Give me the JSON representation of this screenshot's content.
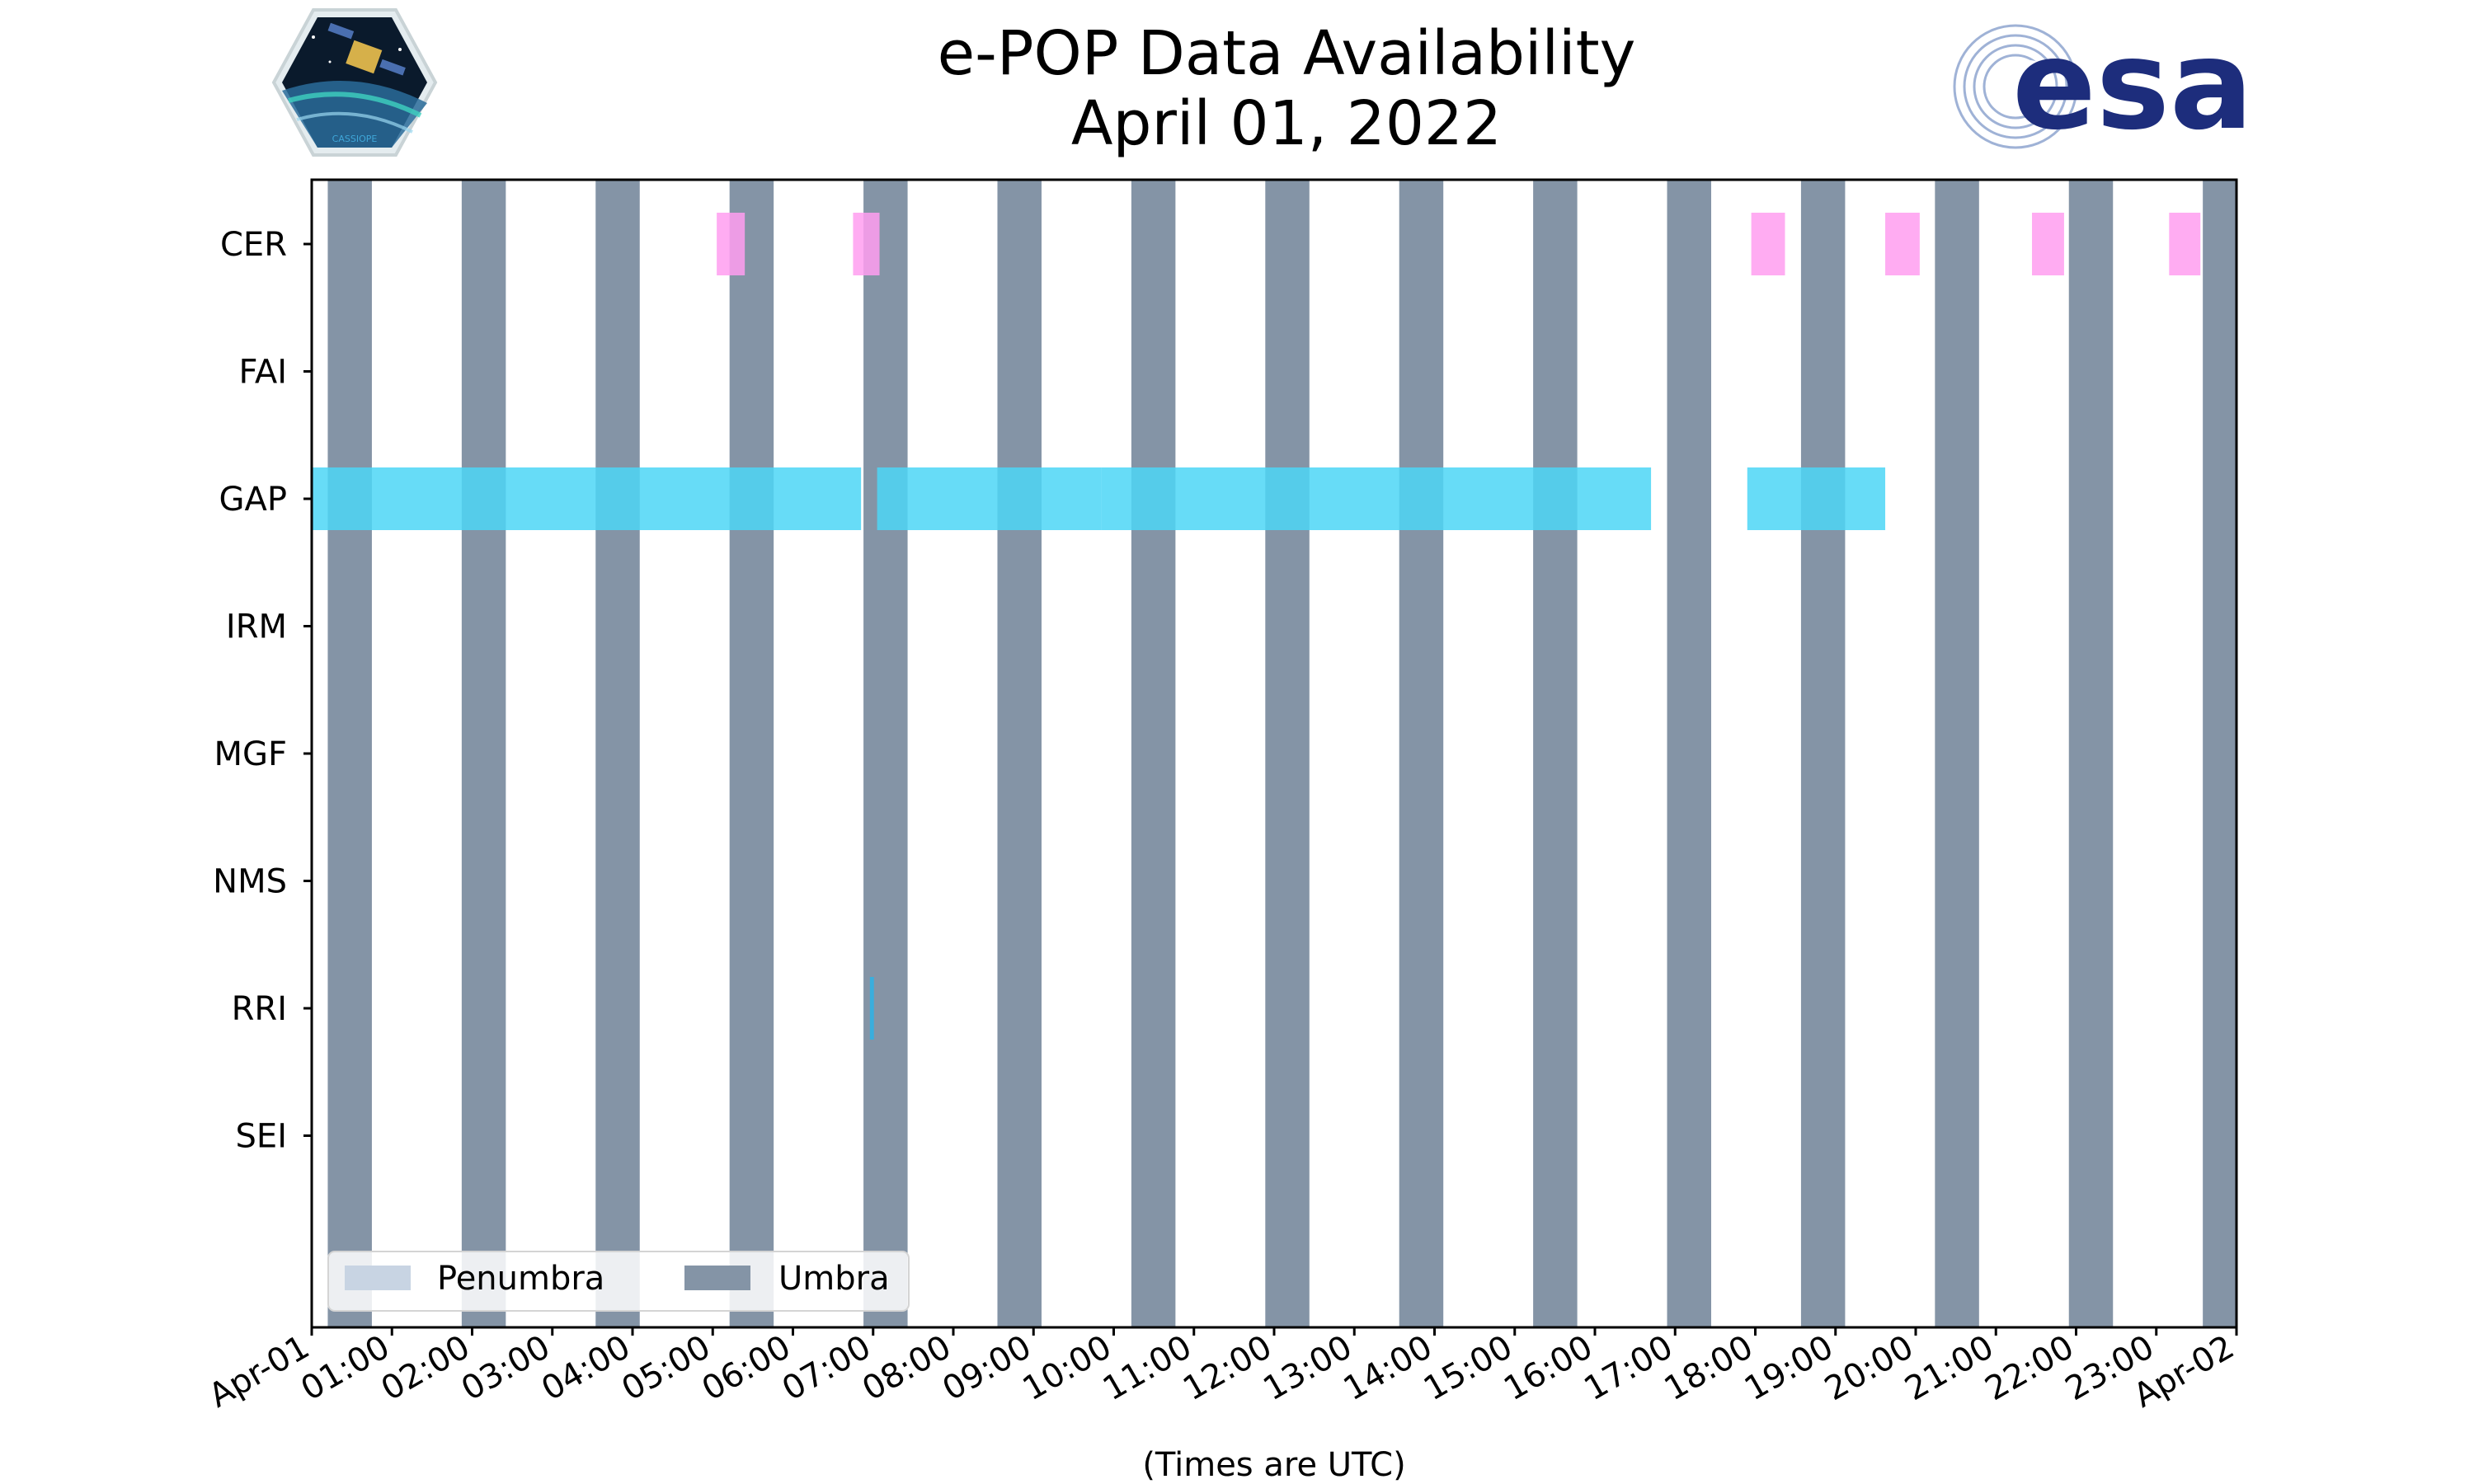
{
  "chart_data": {
    "type": "timeline",
    "title": "e-POP Data Availability",
    "subtitle": "April 01, 2022",
    "xlabel": "(Times are UTC)",
    "x_unit": "hours since 2022-04-01 00:00 UTC",
    "xlim": [
      0,
      24
    ],
    "x_tick_labels": [
      "Apr-01",
      "01:00",
      "02:00",
      "03:00",
      "04:00",
      "05:00",
      "06:00",
      "07:00",
      "08:00",
      "09:00",
      "10:00",
      "11:00",
      "12:00",
      "13:00",
      "14:00",
      "15:00",
      "16:00",
      "17:00",
      "18:00",
      "19:00",
      "20:00",
      "21:00",
      "22:00",
      "23:00",
      "Apr-02"
    ],
    "instruments": [
      "CER",
      "FAI",
      "GAP",
      "IRM",
      "MGF",
      "NMS",
      "RRI",
      "SEI"
    ],
    "umbra_intervals": [
      [
        0.2,
        0.75
      ],
      [
        1.87,
        2.42
      ],
      [
        3.54,
        4.09
      ],
      [
        5.21,
        5.76
      ],
      [
        6.88,
        7.43
      ],
      [
        8.55,
        9.1
      ],
      [
        10.22,
        10.77
      ],
      [
        11.89,
        12.44
      ],
      [
        13.56,
        14.11
      ],
      [
        15.23,
        15.78
      ],
      [
        16.9,
        17.45
      ],
      [
        18.57,
        19.12
      ],
      [
        20.24,
        20.79
      ],
      [
        21.91,
        22.46
      ],
      [
        23.58,
        24.0
      ]
    ],
    "penumbra_intervals": [],
    "data_intervals": {
      "CER": [
        [
          5.05,
          5.4
        ],
        [
          6.75,
          7.08
        ],
        [
          17.95,
          18.37
        ],
        [
          19.62,
          20.05
        ],
        [
          21.45,
          21.85
        ],
        [
          23.16,
          23.55
        ]
      ],
      "FAI": [],
      "GAP": [
        [
          0.0,
          6.85
        ],
        [
          7.05,
          9.85
        ],
        [
          9.85,
          16.7
        ],
        [
          17.9,
          19.62
        ]
      ],
      "IRM": [],
      "MGF": [],
      "NMS": [],
      "RRI": [
        [
          6.96,
          7.01
        ]
      ],
      "SEI": []
    },
    "legend": {
      "position": "lower-left",
      "entries": [
        "Penumbra",
        "Umbra"
      ]
    },
    "colors": {
      "umbra": "#8494a6",
      "penumbra": "#c8d4e3",
      "CER": "#ff9ef0",
      "GAP": "#4cd6f6",
      "RRI": "#2bb3e6"
    }
  },
  "logos": {
    "left_logo_text": "CASSIOPE",
    "right_logo_text": "esa",
    "right_logo_color": "#1d2d7c"
  }
}
